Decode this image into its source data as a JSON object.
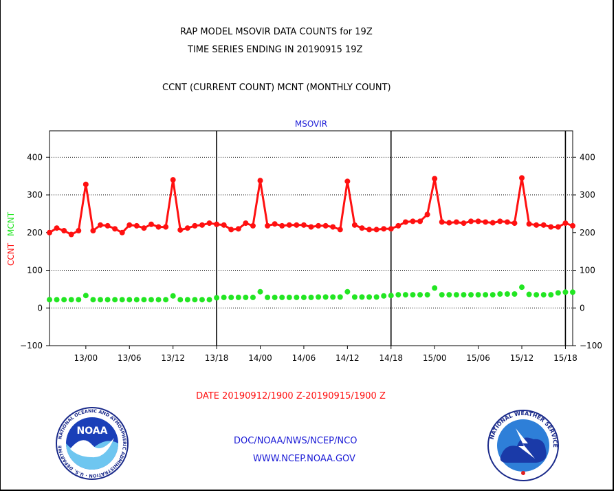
{
  "header": {
    "title_line1": "RAP MODEL MSOVIR DATA COUNTS for 19Z",
    "title_line2": "TIME SERIES ENDING IN 20190915 19Z",
    "subtitle": "CCNT (CURRENT COUNT) MCNT (MONTHLY COUNT)"
  },
  "chart_data": {
    "type": "line",
    "title": "MSOVIR",
    "ylim": [
      -100,
      470
    ],
    "yticks": [
      -100,
      0,
      100,
      200,
      300,
      400
    ],
    "grid_y": [
      0,
      100,
      300,
      400
    ],
    "grid": true,
    "ylabel_ccnt": "CCNT",
    "ylabel_mcnt": "MCNT",
    "x_tick_labels": [
      "13/00",
      "13/06",
      "13/12",
      "13/18",
      "14/00",
      "14/06",
      "14/12",
      "14/18",
      "15/00",
      "15/06",
      "15/12",
      "15/18"
    ],
    "day_separators": [
      "13/18",
      "14/18"
    ],
    "end_marker": "15/18",
    "xlabel": "DATE 20190912/1900 Z-20190915/1900 Z",
    "colors": {
      "ccnt": "#ff1010",
      "mcnt": "#22e622",
      "title": "#1a1ad6"
    },
    "series": [
      {
        "name": "CCNT",
        "values": [
          200,
          212,
          205,
          195,
          205,
          328,
          205,
          220,
          218,
          210,
          200,
          220,
          218,
          212,
          222,
          215,
          215,
          340,
          207,
          212,
          218,
          220,
          225,
          222,
          220,
          208,
          210,
          225,
          218,
          338,
          218,
          223,
          218,
          220,
          220,
          220,
          215,
          218,
          218,
          215,
          208,
          336,
          220,
          212,
          208,
          208,
          210,
          210,
          218,
          228,
          230,
          230,
          248,
          343,
          228,
          226,
          228,
          225,
          230,
          230,
          228,
          226,
          230,
          228,
          225,
          345,
          223,
          220,
          220,
          215,
          215,
          225,
          218
        ]
      },
      {
        "name": "MCNT",
        "values": [
          22,
          22,
          22,
          22,
          22,
          33,
          22,
          22,
          22,
          22,
          22,
          22,
          22,
          22,
          22,
          22,
          22,
          32,
          22,
          22,
          22,
          22,
          22,
          27,
          28,
          28,
          28,
          28,
          28,
          43,
          28,
          28,
          28,
          28,
          28,
          28,
          28,
          29,
          29,
          29,
          29,
          43,
          29,
          29,
          29,
          29,
          32,
          33,
          35,
          35,
          35,
          35,
          35,
          53,
          35,
          35,
          35,
          35,
          35,
          35,
          35,
          35,
          37,
          37,
          37,
          55,
          36,
          35,
          35,
          35,
          40,
          42,
          42
        ]
      }
    ]
  },
  "footer": {
    "link1": "DOC/NOAA/NWS/NCEP/NCO",
    "link2": "WWW.NCEP.NOAA.GOV"
  },
  "logos": {
    "noaa_text": "NOAA",
    "noaa_ring": "NATIONAL OCEANIC AND ATMOSPHERIC ADMINISTRATION · U.S. DEPARTMENT OF COMMERCE",
    "nws_ring": "NATIONAL WEATHER SERVICE"
  }
}
